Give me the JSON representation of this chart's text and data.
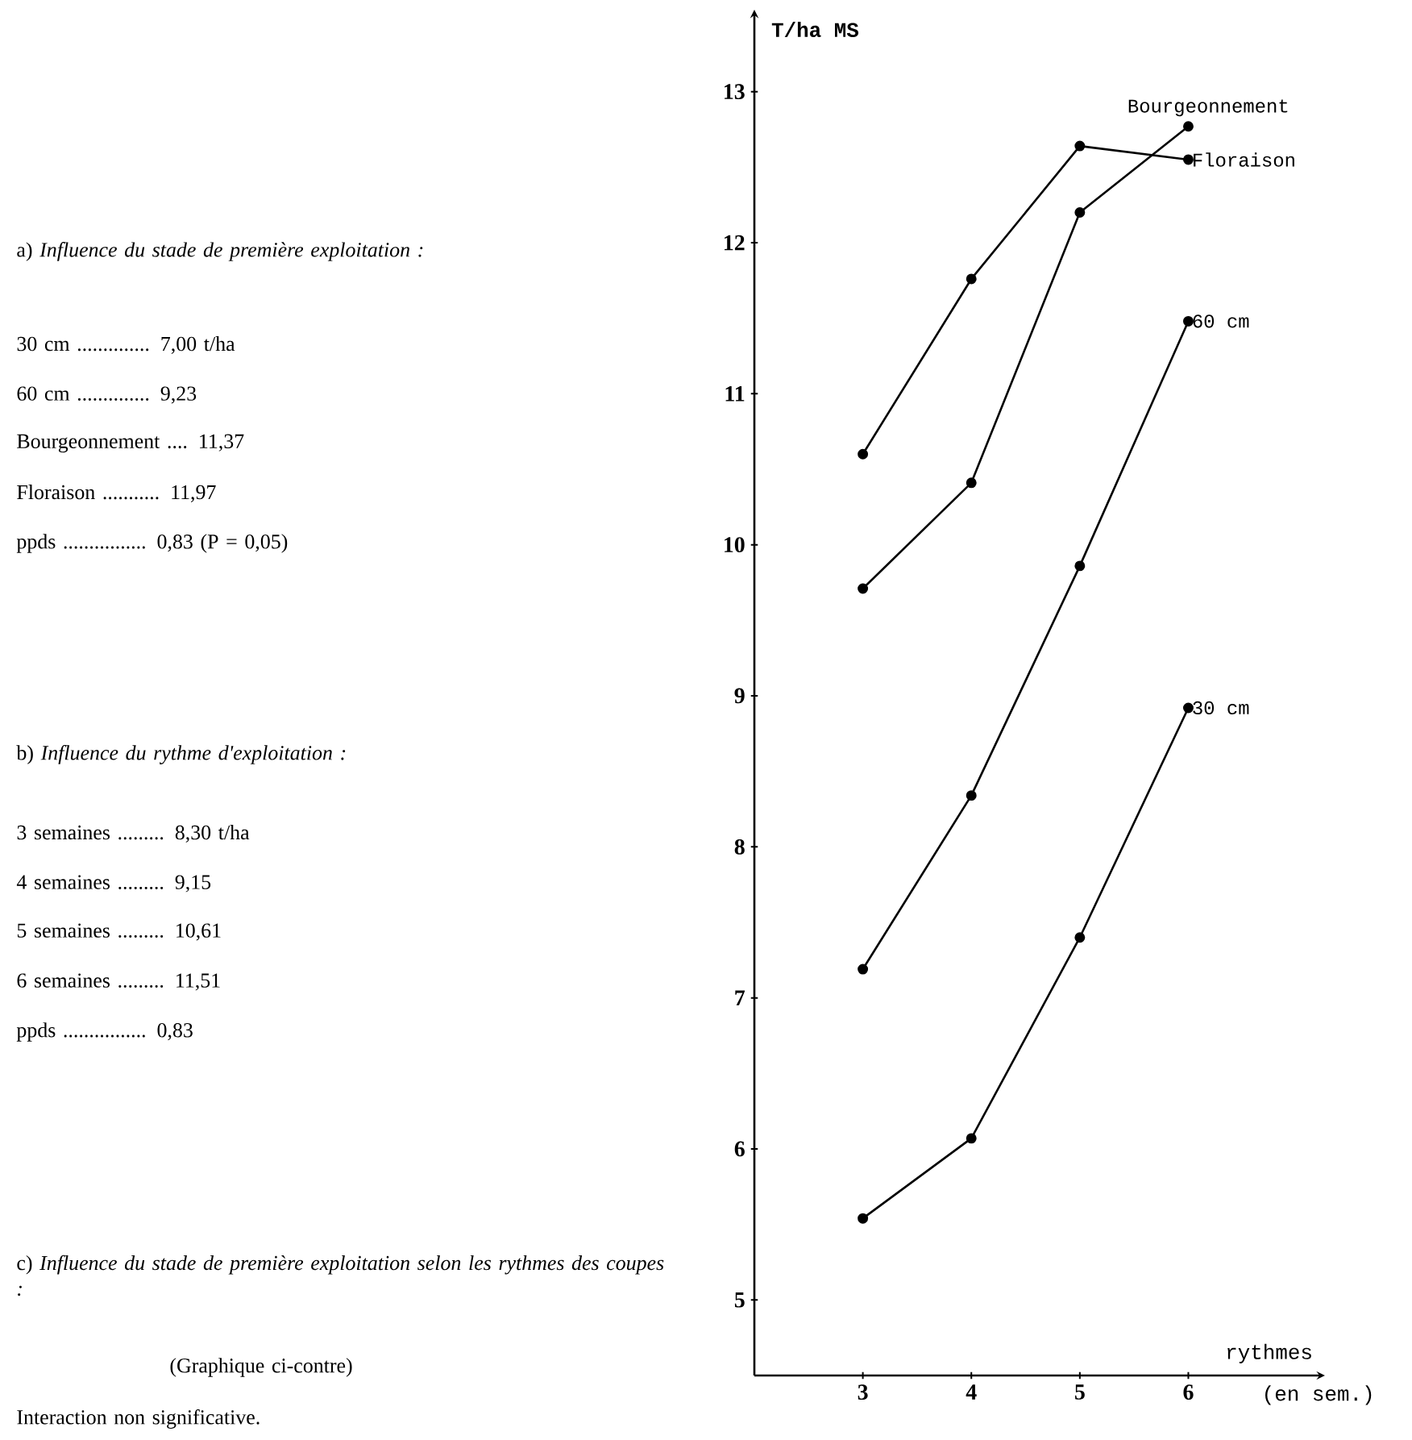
{
  "chart_data": {
    "type": "line",
    "xlabel": "rythmes",
    "ylabel": "T/ha MS",
    "x": [
      3,
      4,
      5,
      6
    ],
    "xlim": [
      2,
      7.2
    ],
    "ylim": [
      4.5,
      13.5
    ],
    "xticks": [
      3,
      4,
      5,
      6
    ],
    "yticks": [
      5,
      6,
      7,
      8,
      9,
      10,
      11,
      12,
      13
    ],
    "marker": "circle",
    "line_style": "solid",
    "series": [
      {
        "name": "Bourgeonnement",
        "color": "#000000",
        "values": [
          9.71,
          10.41,
          12.2,
          12.77
        ]
      },
      {
        "name": "Floraison",
        "color": "#000000",
        "values": [
          10.6,
          11.76,
          12.64,
          12.55
        ]
      },
      {
        "name": "60 cm",
        "color": "#000000",
        "values": [
          7.19,
          8.34,
          9.86,
          11.48
        ]
      },
      {
        "name": "30 cm",
        "color": "#000000",
        "values": [
          5.54,
          6.07,
          7.4,
          8.92
        ]
      }
    ],
    "annotations": [
      "a) *Influence du stade de première exploitation :*",
      "30 cm .............. 7,00 t/ha",
      "60 cm .............. 9,23",
      "Bourgeonnement .... 11,37",
      "Floraison ........... 11,97",
      "ppds ................ 0,83 (P = 0,05)",
      "b) *Influence du rythme d'exploitation :*",
      "3 semaines ......... 8,30 t/ha",
      "4 semaines ......... 9,15",
      "5 semaines ......... 10,61",
      "6 semaines ......... 11,51",
      "ppds ................ 0,83",
      "c) *Influence du stade de première exploitation selon les rythmes des coupes :*",
      "(Graphique ci-contre)",
      "Interaction non significative.",
      "(en sem.)"
    ]
  }
}
